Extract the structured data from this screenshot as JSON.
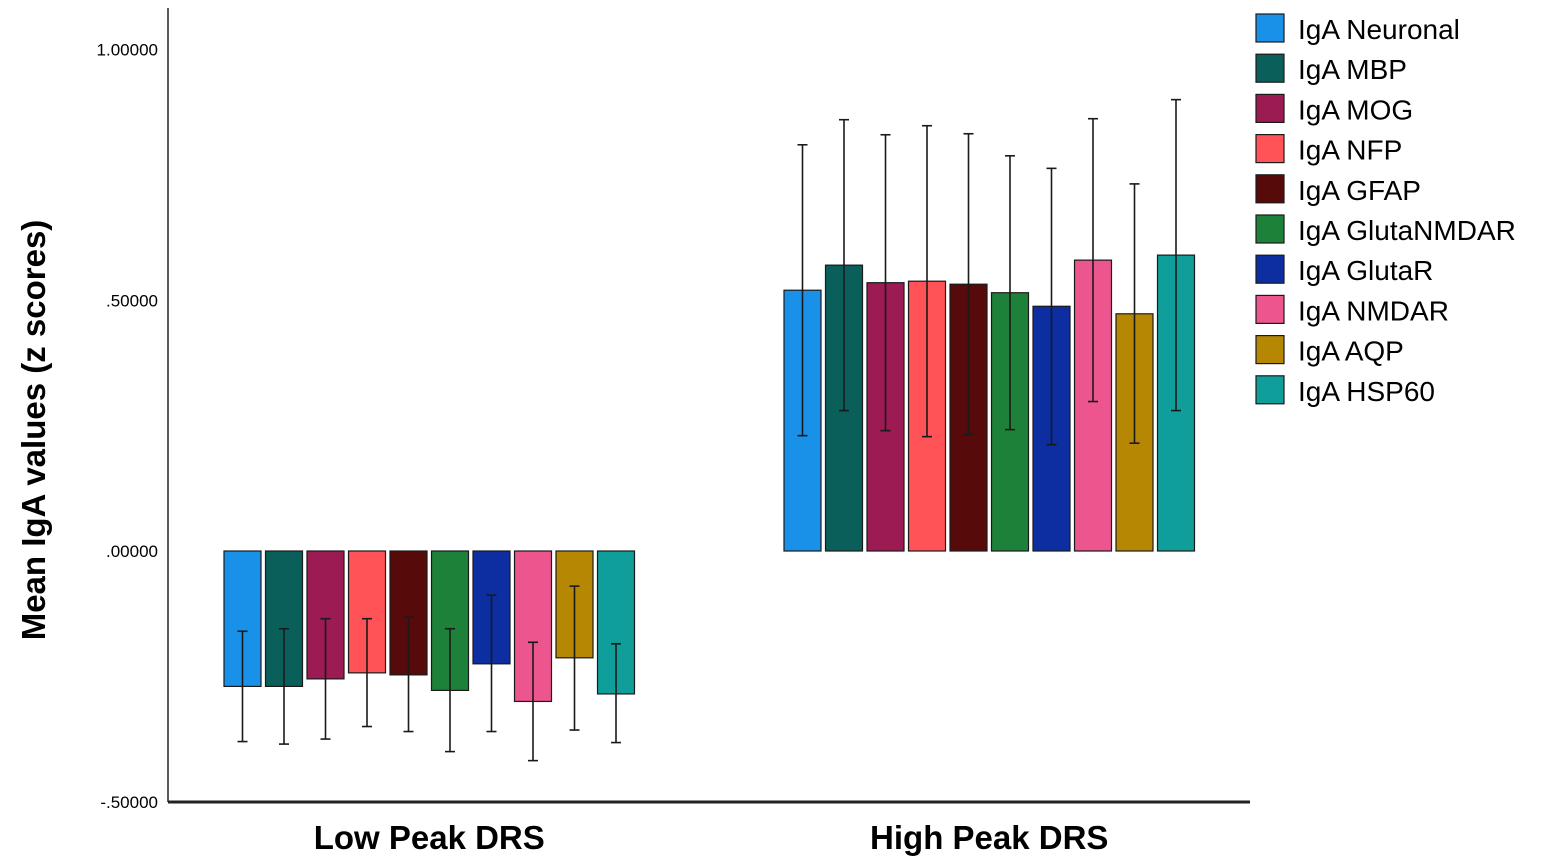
{
  "chart_data": {
    "type": "bar",
    "title": "",
    "xlabel": "",
    "ylabel": "Mean IgA values (z scores)",
    "ylim": [
      -0.5,
      1.05
    ],
    "yticks": [
      1.0,
      0.5,
      0.0,
      -0.5
    ],
    "ytick_labels": [
      "1.00000",
      ".50000",
      ".00000",
      "-.50000"
    ],
    "categories": [
      "Low Peak DRS",
      "High Peak DRS"
    ],
    "grid": false,
    "legend_position": "right",
    "series": [
      {
        "name": "IgA Neuronal",
        "color": "#1a91e8",
        "values": [
          -0.27,
          0.52
        ],
        "err_low": [
          -0.38,
          0.23
        ],
        "err_high": [
          -0.16,
          0.81
        ]
      },
      {
        "name": "IgA MBP",
        "color": "#0b5f5a",
        "values": [
          -0.27,
          0.57
        ],
        "err_low": [
          -0.385,
          0.28
        ],
        "err_high": [
          -0.155,
          0.86
        ]
      },
      {
        "name": "IgA MOG",
        "color": "#9b1b52",
        "values": [
          -0.255,
          0.535
        ],
        "err_low": [
          -0.375,
          0.24
        ],
        "err_high": [
          -0.135,
          0.83
        ]
      },
      {
        "name": "IgA NFP",
        "color": "#ff5358",
        "values": [
          -0.243,
          0.538
        ],
        "err_low": [
          -0.35,
          0.228
        ],
        "err_high": [
          -0.135,
          0.848
        ]
      },
      {
        "name": "IgA GFAP",
        "color": "#560a0a",
        "values": [
          -0.247,
          0.532
        ],
        "err_low": [
          -0.36,
          0.232
        ],
        "err_high": [
          -0.132,
          0.832
        ]
      },
      {
        "name": "IgA GlutaNMDAR",
        "color": "#1e8139",
        "values": [
          -0.278,
          0.515
        ],
        "err_low": [
          -0.4,
          0.242
        ],
        "err_high": [
          -0.155,
          0.788
        ]
      },
      {
        "name": "IgA GlutaR",
        "color": "#0c2ea0",
        "values": [
          -0.225,
          0.488
        ],
        "err_low": [
          -0.36,
          0.212
        ],
        "err_high": [
          -0.088,
          0.763
        ]
      },
      {
        "name": "IgA NMDAR",
        "color": "#ec558e",
        "values": [
          -0.3,
          0.58
        ],
        "err_low": [
          -0.418,
          0.298
        ],
        "err_high": [
          -0.182,
          0.862
        ]
      },
      {
        "name": "IgA AQP",
        "color": "#b58703",
        "values": [
          -0.213,
          0.473
        ],
        "err_low": [
          -0.357,
          0.215
        ],
        "err_high": [
          -0.07,
          0.732
        ]
      },
      {
        "name": "IgA HSP60",
        "color": "#0f9e99",
        "values": [
          -0.285,
          0.59
        ],
        "err_low": [
          -0.382,
          0.28
        ],
        "err_high": [
          -0.185,
          0.9
        ]
      }
    ]
  }
}
